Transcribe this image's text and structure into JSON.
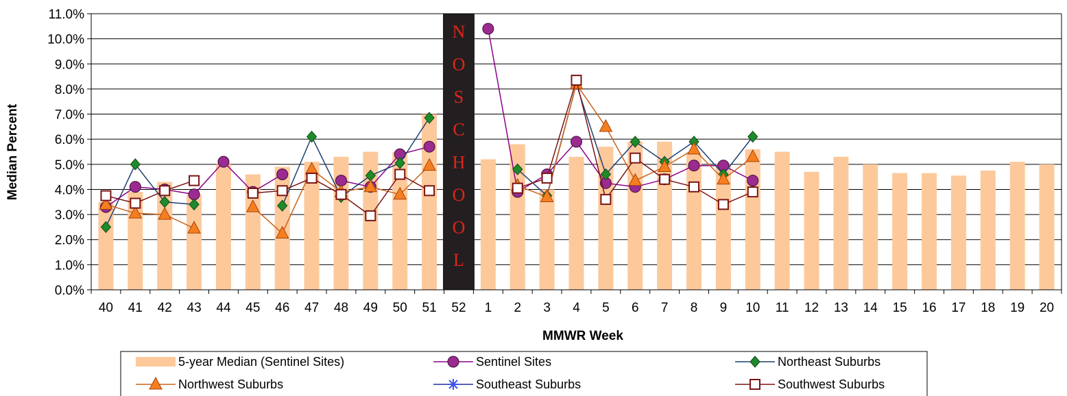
{
  "chart_data": {
    "type": "bar+line",
    "xlabel": "MMWR Week",
    "ylabel": "Median Percent",
    "ylim": [
      0,
      11
    ],
    "ytick_step": 1,
    "ytick_format": "percent_1dp",
    "grid": true,
    "legend_position": "bottom",
    "categories": [
      "40",
      "41",
      "42",
      "43",
      "44",
      "45",
      "46",
      "47",
      "48",
      "49",
      "50",
      "51",
      "52",
      "1",
      "2",
      "3",
      "4",
      "5",
      "6",
      "7",
      "8",
      "9",
      "10",
      "11",
      "12",
      "13",
      "14",
      "15",
      "16",
      "17",
      "18",
      "19",
      "20"
    ],
    "annotation": {
      "category": "52",
      "letters": [
        "N",
        "O",
        "S",
        "C",
        "H",
        "O",
        "O",
        "L"
      ]
    },
    "bar_series": {
      "name": "5-year Median (Sentinel Sites)",
      "color": "#fdc99b",
      "values": [
        3.5,
        3.9,
        4.3,
        3.8,
        5.0,
        4.6,
        4.9,
        5.1,
        5.3,
        5.5,
        5.5,
        7.0,
        null,
        5.2,
        5.8,
        4.0,
        5.3,
        5.7,
        5.9,
        5.9,
        5.4,
        5.0,
        5.6,
        5.5,
        4.7,
        5.3,
        5.0,
        4.65,
        4.65,
        4.55,
        4.75,
        5.1,
        5.0
      ]
    },
    "series": [
      {
        "name": "Sentinel Sites",
        "line_color": "#8b008b",
        "marker": "circle",
        "marker_fill": "#9b2b90",
        "values": [
          3.3,
          4.1,
          4.0,
          3.8,
          5.1,
          3.9,
          4.6,
          null,
          4.35,
          4.1,
          5.4,
          5.7,
          null,
          10.4,
          3.9,
          4.6,
          5.9,
          4.25,
          4.1,
          4.4,
          4.95,
          4.95,
          4.35,
          null,
          null,
          null,
          null,
          null,
          null,
          null,
          null,
          null,
          null
        ]
      },
      {
        "name": "Northeast Suburbs",
        "line_color": "#1d3f72",
        "marker": "diamond",
        "marker_fill": "#1f8a2b",
        "values": [
          2.5,
          5.0,
          3.5,
          3.4,
          null,
          null,
          3.35,
          6.1,
          3.7,
          4.55,
          5.05,
          6.85,
          null,
          null,
          4.8,
          3.75,
          8.2,
          4.6,
          5.9,
          5.1,
          5.9,
          4.6,
          6.1,
          null,
          null,
          null,
          null,
          null,
          null,
          null,
          null,
          null,
          null
        ]
      },
      {
        "name": "Northwest Suburbs",
        "line_color": "#c8641e",
        "marker": "triangle",
        "marker_fill": "#f57f20",
        "values": [
          3.4,
          3.05,
          3.0,
          2.45,
          null,
          3.3,
          2.25,
          4.8,
          3.9,
          4.1,
          3.8,
          4.95,
          null,
          null,
          4.15,
          3.7,
          8.2,
          6.5,
          4.35,
          4.9,
          5.6,
          4.4,
          5.3,
          null,
          null,
          null,
          null,
          null,
          null,
          null,
          null,
          null,
          null
        ]
      },
      {
        "name": "Southeast Suburbs",
        "line_color": "#1f2f9c",
        "marker": "asterisk",
        "marker_fill": "#3b55e6",
        "values": [
          null,
          null,
          null,
          null,
          null,
          null,
          null,
          null,
          null,
          null,
          null,
          null,
          null,
          null,
          null,
          null,
          null,
          null,
          null,
          null,
          null,
          null,
          null,
          null,
          null,
          null,
          null,
          null,
          null,
          null,
          null,
          null,
          null
        ]
      },
      {
        "name": "Southwest Suburbs",
        "line_color": "#7a1414",
        "marker": "square",
        "marker_fill": "#ffffff",
        "values": [
          3.75,
          3.45,
          3.95,
          4.35,
          null,
          3.85,
          3.95,
          4.45,
          3.8,
          2.95,
          4.6,
          3.95,
          null,
          null,
          4.05,
          4.45,
          8.35,
          3.6,
          5.25,
          4.4,
          4.1,
          3.4,
          3.9,
          null,
          null,
          null,
          null,
          null,
          null,
          null,
          null,
          null,
          null
        ]
      }
    ]
  }
}
